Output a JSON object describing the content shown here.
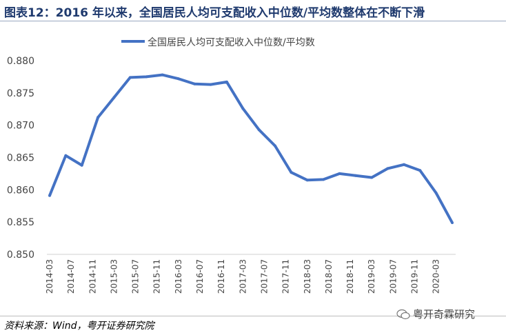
{
  "title": "图表12：2016 年以来，全国居民人均可支配收入中位数/平均数整体在不断下滑",
  "source": "资料来源：Wind，粤开证券研究院",
  "watermark": "粤开奇霖研究",
  "chart_data": {
    "type": "line",
    "title": "",
    "xlabel": "",
    "ylabel": "",
    "ylim": [
      0.85,
      0.88
    ],
    "yticks": [
      "0.850",
      "0.855",
      "0.860",
      "0.865",
      "0.870",
      "0.875",
      "0.880"
    ],
    "grid": false,
    "legend": "top",
    "color": "#4472c4",
    "x": [
      "2014-03",
      "2014-06",
      "2014-09",
      "2014-12",
      "2015-03",
      "2015-06",
      "2015-09",
      "2015-12",
      "2016-03",
      "2016-06",
      "2016-09",
      "2016-12",
      "2017-03",
      "2017-06",
      "2017-09",
      "2017-12",
      "2018-03",
      "2018-06",
      "2018-09",
      "2018-12",
      "2019-03",
      "2019-06",
      "2019-09",
      "2019-12",
      "2020-03",
      "2020-06"
    ],
    "xticks": [
      "2014-03",
      "2014-07",
      "2014-11",
      "2015-03",
      "2015-07",
      "2015-11",
      "2016-03",
      "2016-07",
      "2016-11",
      "2017-03",
      "2017-07",
      "2017-11",
      "2018-03",
      "2018-07",
      "2018-11",
      "2019-03",
      "2019-07",
      "2019-11",
      "2020-03"
    ],
    "series": [
      {
        "name": "全国居民人均可支配收入中位数/平均数",
        "values": [
          0.8591,
          0.8653,
          0.8638,
          0.8712,
          0.8743,
          0.8774,
          0.8775,
          0.8778,
          0.8772,
          0.8764,
          0.8763,
          0.8767,
          0.8726,
          0.8693,
          0.8668,
          0.8627,
          0.8615,
          0.8616,
          0.8625,
          0.8622,
          0.8619,
          0.8633,
          0.8639,
          0.863,
          0.8595,
          0.8549
        ]
      }
    ]
  }
}
